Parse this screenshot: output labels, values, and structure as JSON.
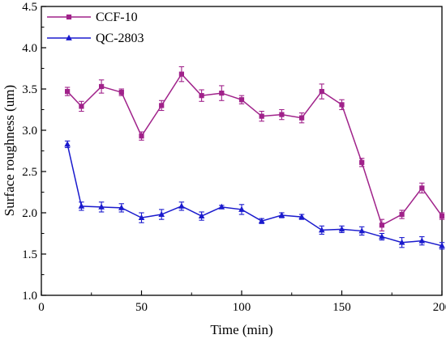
{
  "chart_data": {
    "type": "line",
    "title": "",
    "xlabel": "Time (min)",
    "ylabel": "Surface roughness (um)",
    "xlim": [
      0,
      200
    ],
    "ylim": [
      1.0,
      4.5
    ],
    "xticks": [
      "0",
      "50",
      "100",
      "150",
      "200"
    ],
    "yticks": [
      "1.0",
      "1.5",
      "2.0",
      "2.5",
      "3.0",
      "3.5",
      "4.0",
      "4.5"
    ],
    "grid": false,
    "legend_position": "top-left",
    "x": [
      13,
      20,
      30,
      40,
      50,
      60,
      70,
      80,
      90,
      100,
      110,
      120,
      130,
      140,
      150,
      160,
      170,
      180,
      190,
      200
    ],
    "series": [
      {
        "name": "CCF-10",
        "color": "#a0228a",
        "marker": "square",
        "values": [
          3.47,
          3.29,
          3.53,
          3.46,
          2.93,
          3.3,
          3.68,
          3.42,
          3.45,
          3.37,
          3.17,
          3.19,
          3.15,
          3.47,
          3.31,
          2.61,
          1.85,
          1.98,
          2.3,
          1.96
        ],
        "errors": [
          0.05,
          0.06,
          0.08,
          0.04,
          0.05,
          0.06,
          0.09,
          0.07,
          0.09,
          0.05,
          0.06,
          0.06,
          0.06,
          0.09,
          0.06,
          0.05,
          0.07,
          0.05,
          0.06,
          0.04
        ]
      },
      {
        "name": "QC-2803",
        "color": "#1a1acd",
        "marker": "triangle",
        "values": [
          2.83,
          2.08,
          2.07,
          2.06,
          1.94,
          1.98,
          2.08,
          1.96,
          2.07,
          2.04,
          1.9,
          1.97,
          1.95,
          1.79,
          1.8,
          1.78,
          1.71,
          1.64,
          1.66,
          1.6
        ],
        "errors": [
          0.04,
          0.05,
          0.06,
          0.05,
          0.06,
          0.06,
          0.05,
          0.05,
          0.02,
          0.06,
          0.03,
          0.03,
          0.03,
          0.05,
          0.04,
          0.05,
          0.04,
          0.06,
          0.05,
          0.04
        ]
      }
    ]
  }
}
